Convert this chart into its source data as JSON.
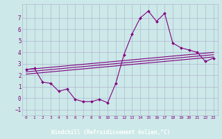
{
  "xlabel": "Windchill (Refroidissement éolien,°C)",
  "bg_color": "#cce8e8",
  "line_color": "#800080",
  "grid_color": "#b0b8d0",
  "xlabel_bg": "#800080",
  "xlabel_fg": "#ffffff",
  "x_main": [
    0,
    1,
    2,
    3,
    4,
    5,
    6,
    7,
    8,
    9,
    10,
    11,
    12,
    13,
    14,
    15,
    16,
    17,
    18,
    19,
    20,
    21,
    22,
    23
  ],
  "y_main": [
    2.5,
    2.6,
    1.4,
    1.3,
    0.6,
    0.8,
    -0.1,
    -0.3,
    -0.3,
    -0.1,
    -0.4,
    1.3,
    3.8,
    5.6,
    7.0,
    7.6,
    6.7,
    7.4,
    4.8,
    4.4,
    4.2,
    4.0,
    3.2,
    3.5
  ],
  "y_line1": [
    2.5,
    2.565,
    2.63,
    2.695,
    2.76,
    2.825,
    2.89,
    2.955,
    3.02,
    3.085,
    3.15,
    3.215,
    3.28,
    3.345,
    3.41,
    3.475,
    3.54,
    3.605,
    3.67,
    3.735,
    3.8,
    3.865,
    3.93,
    3.995
  ],
  "y_line2": [
    2.3,
    2.365,
    2.43,
    2.495,
    2.56,
    2.625,
    2.69,
    2.755,
    2.82,
    2.885,
    2.95,
    3.015,
    3.08,
    3.145,
    3.21,
    3.275,
    3.34,
    3.405,
    3.47,
    3.535,
    3.6,
    3.665,
    3.73,
    3.795
  ],
  "y_line3": [
    2.1,
    2.165,
    2.23,
    2.295,
    2.36,
    2.425,
    2.49,
    2.555,
    2.62,
    2.685,
    2.75,
    2.815,
    2.88,
    2.945,
    3.01,
    3.075,
    3.14,
    3.205,
    3.27,
    3.335,
    3.4,
    3.465,
    3.53,
    3.595
  ],
  "ylim": [
    -1.5,
    8.2
  ],
  "xlim": [
    -0.5,
    23.5
  ],
  "yticks": [
    -1,
    0,
    1,
    2,
    3,
    4,
    5,
    6,
    7
  ],
  "xticks": [
    0,
    1,
    2,
    3,
    4,
    5,
    6,
    7,
    8,
    9,
    10,
    11,
    12,
    13,
    14,
    15,
    16,
    17,
    18,
    19,
    20,
    21,
    22,
    23
  ]
}
